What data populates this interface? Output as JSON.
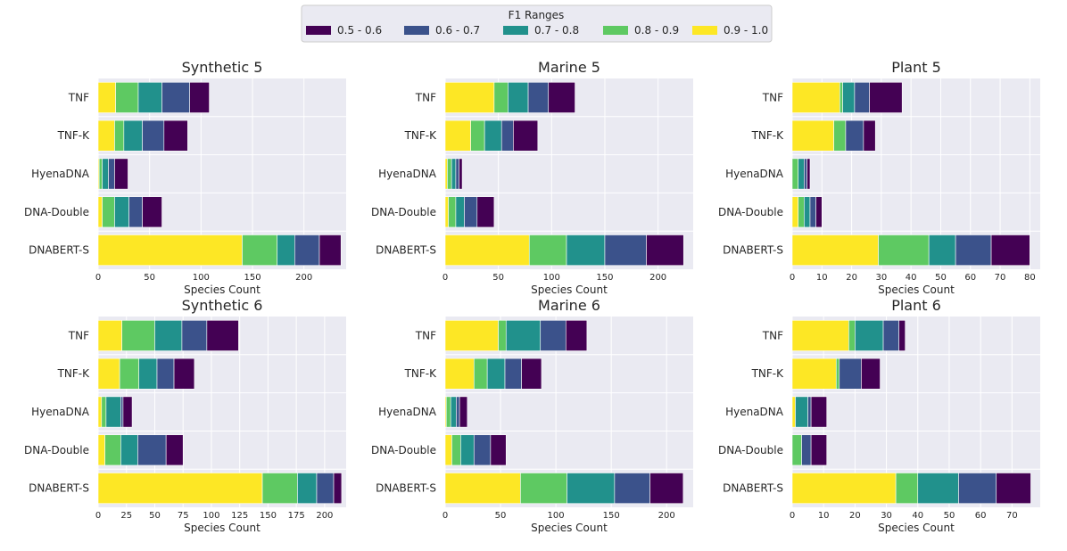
{
  "chart_data": {
    "type": "bar",
    "orientation": "horizontal",
    "stacked": true,
    "legend": {
      "title": "F1 Ranges",
      "position": "top-center",
      "entries": [
        {
          "label": "0.5 - 0.6",
          "color": "#440154"
        },
        {
          "label": "0.6 - 0.7",
          "color": "#3b528b"
        },
        {
          "label": "0.7 - 0.8",
          "color": "#21918c"
        },
        {
          "label": "0.8 - 0.9",
          "color": "#5ec962"
        },
        {
          "label": "0.9 - 1.0",
          "color": "#fde725"
        }
      ]
    },
    "categories": [
      "TNF",
      "TNF-K",
      "HyenaDNA",
      "DNA-Double",
      "DNABERT-S"
    ],
    "panels": [
      {
        "title": "Synthetic 5",
        "xlabel": "Species Count",
        "xlim": [
          0,
          241
        ],
        "xticks": [
          0,
          50,
          100,
          150,
          200
        ],
        "series": [
          {
            "name": "0.9 - 1.0",
            "values": [
              17,
              16,
              1,
              4,
              140
            ]
          },
          {
            "name": "0.8 - 0.9",
            "values": [
              22,
              9,
              3,
              12,
              34
            ]
          },
          {
            "name": "0.7 - 0.8",
            "values": [
              23,
              18,
              6,
              14,
              17
            ]
          },
          {
            "name": "0.6 - 0.7",
            "values": [
              27,
              21,
              6,
              13,
              24
            ]
          },
          {
            "name": "0.5 - 0.6",
            "values": [
              19,
              23,
              13,
              19,
              21
            ]
          }
        ]
      },
      {
        "title": "Marine 5",
        "xlabel": "Species Count",
        "xlim": [
          0,
          233
        ],
        "xticks": [
          0,
          50,
          100,
          150,
          200
        ],
        "series": [
          {
            "name": "0.9 - 1.0",
            "values": [
              46,
              24,
              2,
              3,
              79
            ]
          },
          {
            "name": "0.8 - 0.9",
            "values": [
              13,
              13,
              4,
              7,
              35
            ]
          },
          {
            "name": "0.7 - 0.8",
            "values": [
              19,
              16,
              4,
              8,
              36
            ]
          },
          {
            "name": "0.6 - 0.7",
            "values": [
              19,
              11,
              3,
              12,
              39
            ]
          },
          {
            "name": "0.5 - 0.6",
            "values": [
              25,
              23,
              3,
              16,
              35
            ]
          }
        ]
      },
      {
        "title": "Plant 5",
        "xlabel": "Species Count",
        "xlim": [
          0,
          83.5
        ],
        "xticks": [
          0,
          10,
          20,
          30,
          40,
          50,
          60,
          70,
          80
        ],
        "series": [
          {
            "name": "0.9 - 1.0",
            "values": [
              16,
              14,
              0,
              2,
              29
            ]
          },
          {
            "name": "0.8 - 0.9",
            "values": [
              1,
              4,
              2,
              2,
              17
            ]
          },
          {
            "name": "0.7 - 0.8",
            "values": [
              4,
              0,
              2,
              2,
              9
            ]
          },
          {
            "name": "0.6 - 0.7",
            "values": [
              5,
              6,
              1,
              2,
              12
            ]
          },
          {
            "name": "0.5 - 0.6",
            "values": [
              11,
              4,
              1,
              2,
              13
            ]
          }
        ]
      },
      {
        "title": "Synthetic 6",
        "xlabel": "Species Count",
        "xlim": [
          0,
          219
        ],
        "xticks": [
          0,
          25,
          50,
          75,
          100,
          125,
          150,
          175,
          200
        ],
        "series": [
          {
            "name": "0.9 - 1.0",
            "values": [
              21,
              19,
              3,
              6,
              145
            ]
          },
          {
            "name": "0.8 - 0.9",
            "values": [
              29,
              17,
              4,
              14,
              31
            ]
          },
          {
            "name": "0.7 - 0.8",
            "values": [
              24,
              16,
              13,
              15,
              17
            ]
          },
          {
            "name": "0.6 - 0.7",
            "values": [
              22,
              15,
              2,
              25,
              15
            ]
          },
          {
            "name": "0.5 - 0.6",
            "values": [
              28,
              18,
              8,
              15,
              7
            ]
          }
        ]
      },
      {
        "title": "Marine 6",
        "xlabel": "Species Count",
        "xlim": [
          0,
          224
        ],
        "xticks": [
          0,
          50,
          100,
          150,
          200
        ],
        "series": [
          {
            "name": "0.9 - 1.0",
            "values": [
              48,
              26,
              1,
              6,
              68
            ]
          },
          {
            "name": "0.8 - 0.9",
            "values": [
              7,
              12,
              4,
              8,
              42
            ]
          },
          {
            "name": "0.7 - 0.8",
            "values": [
              31,
              16,
              5,
              12,
              43
            ]
          },
          {
            "name": "0.6 - 0.7",
            "values": [
              23,
              15,
              3,
              15,
              32
            ]
          },
          {
            "name": "0.5 - 0.6",
            "values": [
              19,
              18,
              7,
              14,
              30
            ]
          }
        ]
      },
      {
        "title": "Plant 6",
        "xlabel": "Species Count",
        "xlim": [
          0,
          79
        ],
        "xticks": [
          0,
          10,
          20,
          30,
          40,
          50,
          60,
          70
        ],
        "series": [
          {
            "name": "0.9 - 1.0",
            "values": [
              18,
              14,
              1,
              0,
              33
            ]
          },
          {
            "name": "0.8 - 0.9",
            "values": [
              2,
              1,
              0,
              3,
              7
            ]
          },
          {
            "name": "0.7 - 0.8",
            "values": [
              9,
              0,
              4,
              0,
              13
            ]
          },
          {
            "name": "0.6 - 0.7",
            "values": [
              5,
              7,
              1,
              3,
              12
            ]
          },
          {
            "name": "0.5 - 0.6",
            "values": [
              2,
              6,
              5,
              5,
              11
            ]
          }
        ]
      }
    ]
  }
}
